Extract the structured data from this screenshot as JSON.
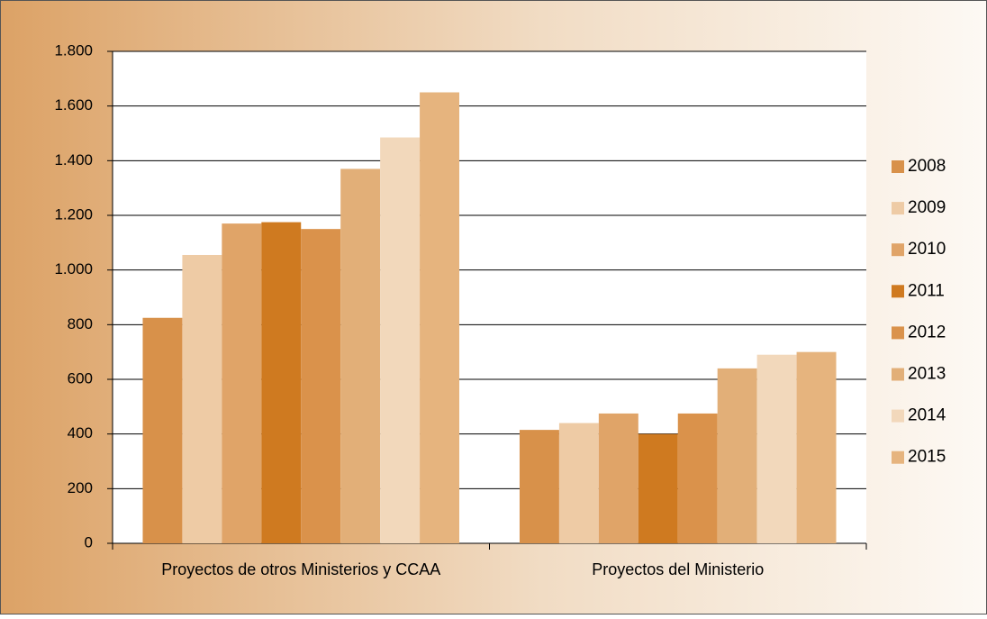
{
  "chart_data": {
    "type": "bar",
    "categories": [
      "Proyectos de otros Ministerios y CCAA",
      "Proyectos del Ministerio"
    ],
    "series": [
      {
        "name": "2008",
        "color": "#d8914a",
        "values": [
          825,
          415
        ]
      },
      {
        "name": "2009",
        "color": "#eecba5",
        "values": [
          1055,
          440
        ]
      },
      {
        "name": "2010",
        "color": "#e0a468",
        "values": [
          1170,
          475
        ]
      },
      {
        "name": "2011",
        "color": "#cf7a20",
        "values": [
          1175,
          400
        ]
      },
      {
        "name": "2012",
        "color": "#da924b",
        "values": [
          1150,
          475
        ]
      },
      {
        "name": "2013",
        "color": "#e2af78",
        "values": [
          1370,
          640
        ]
      },
      {
        "name": "2014",
        "color": "#f2d8bb",
        "values": [
          1485,
          690
        ]
      },
      {
        "name": "2015",
        "color": "#e6b47e",
        "values": [
          1650,
          700
        ]
      }
    ],
    "ylim": [
      0,
      1800
    ],
    "yticks": [
      0,
      200,
      400,
      600,
      800,
      {
        "value": 1000,
        "label": "1.000"
      },
      {
        "value": 1200,
        "label": "1.200"
      },
      {
        "value": 1400,
        "label": "1.400"
      },
      {
        "value": 1600,
        "label": "1.600"
      },
      {
        "value": 1800,
        "label": "1.800"
      }
    ],
    "grid": true,
    "legend": "right"
  }
}
